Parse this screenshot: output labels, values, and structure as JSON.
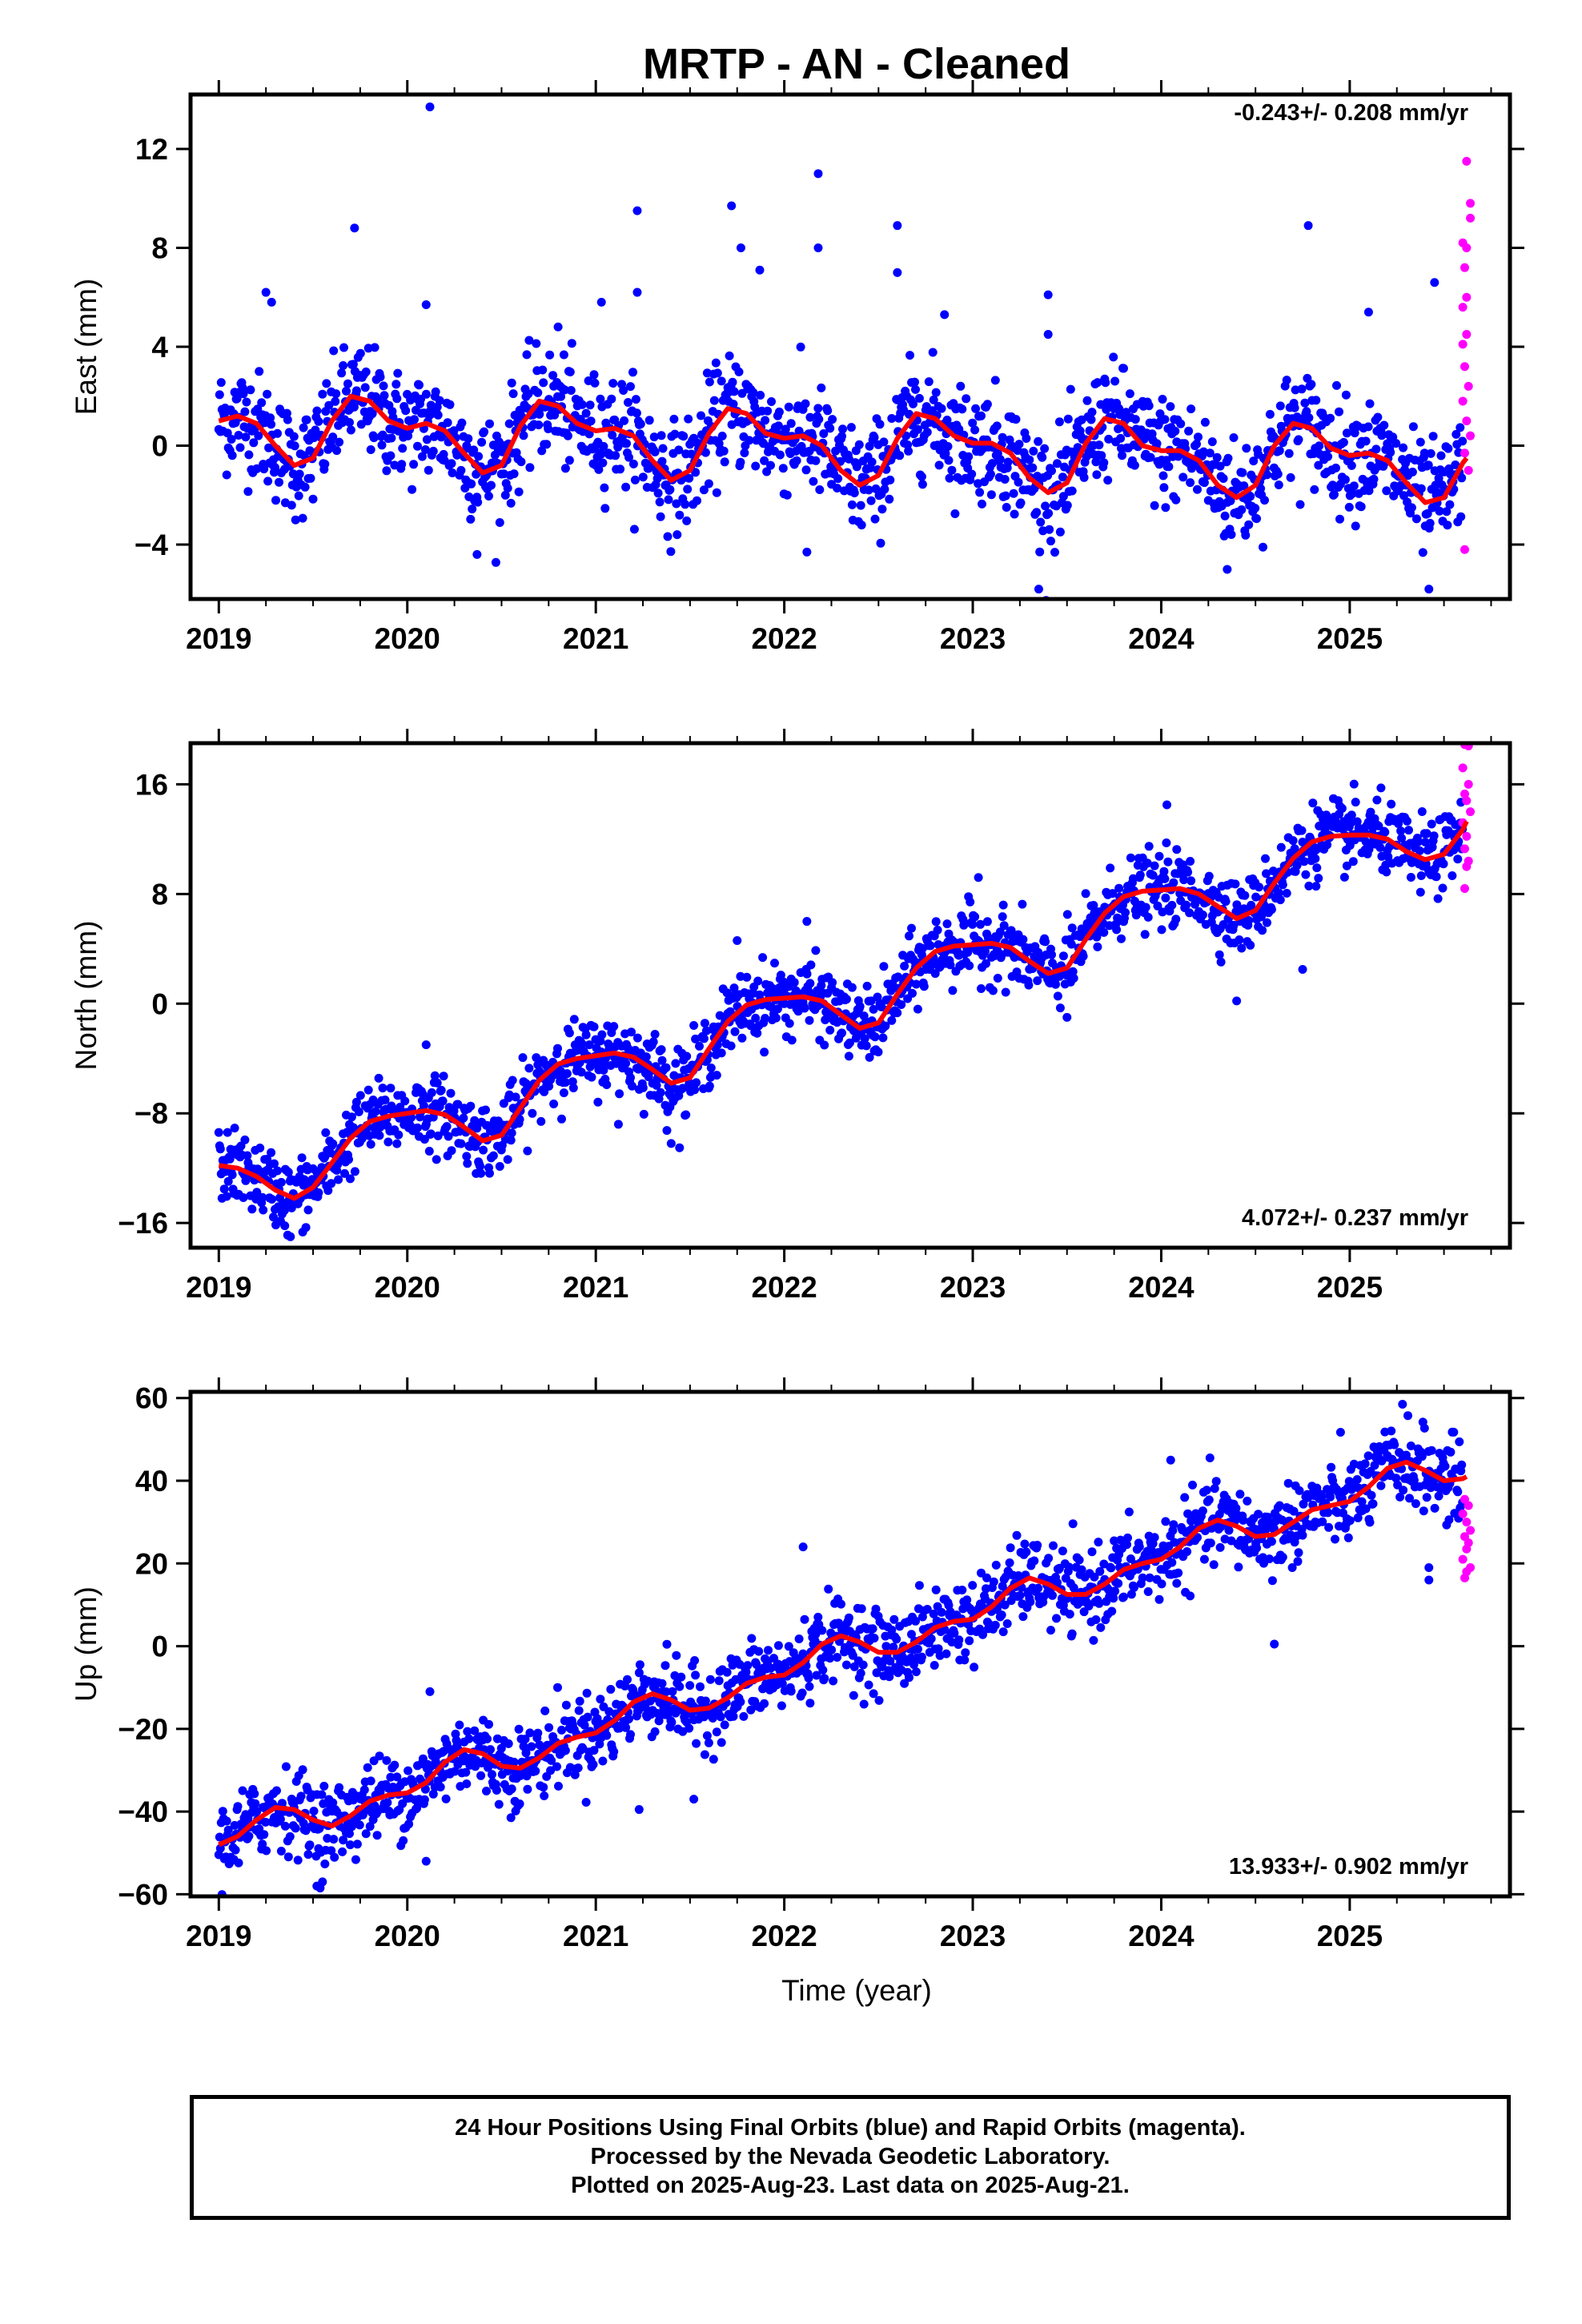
{
  "title": "MRTP  - AN - Cleaned",
  "xlabel": "Time (year)",
  "footer": {
    "line1": "24 Hour Positions Using Final Orbits (blue) and Rapid Orbits (magenta).",
    "line2": "Processed by the Nevada Geodetic Laboratory.",
    "line3": "Plotted on 2025-Aug-23. Last data on 2025-Aug-21."
  },
  "colors": {
    "final": "#0000ff",
    "rapid": "#ff00ff",
    "model": "#ff0000"
  },
  "chart_data": [
    {
      "type": "scatter",
      "ylabel": "East (mm)",
      "rate_text": "-0.243+/- 0.208 mm/yr",
      "xlim": [
        2018.85,
        2025.85
      ],
      "ylim": [
        -6.2,
        14.2
      ],
      "xticks": [
        2019,
        2020,
        2021,
        2022,
        2023,
        2024,
        2025
      ],
      "yticks": [
        -4,
        0,
        4,
        8,
        12
      ],
      "model_points": [
        [
          2019.0,
          1.0
        ],
        [
          2019.1,
          1.2
        ],
        [
          2019.2,
          0.9
        ],
        [
          2019.3,
          0.0
        ],
        [
          2019.4,
          -0.8
        ],
        [
          2019.5,
          -0.5
        ],
        [
          2019.6,
          1.0
        ],
        [
          2019.7,
          2.0
        ],
        [
          2019.8,
          1.8
        ],
        [
          2019.9,
          1.0
        ],
        [
          2020.0,
          0.7
        ],
        [
          2020.1,
          0.9
        ],
        [
          2020.2,
          0.6
        ],
        [
          2020.3,
          -0.3
        ],
        [
          2020.4,
          -1.1
        ],
        [
          2020.5,
          -0.8
        ],
        [
          2020.6,
          0.8
        ],
        [
          2020.7,
          1.8
        ],
        [
          2020.8,
          1.6
        ],
        [
          2020.9,
          0.9
        ],
        [
          2021.0,
          0.6
        ],
        [
          2021.1,
          0.7
        ],
        [
          2021.2,
          0.4
        ],
        [
          2021.3,
          -0.6
        ],
        [
          2021.4,
          -1.4
        ],
        [
          2021.5,
          -1.0
        ],
        [
          2021.6,
          0.5
        ],
        [
          2021.7,
          1.5
        ],
        [
          2021.8,
          1.3
        ],
        [
          2021.9,
          0.5
        ],
        [
          2022.0,
          0.3
        ],
        [
          2022.1,
          0.4
        ],
        [
          2022.2,
          0.0
        ],
        [
          2022.3,
          -1.0
        ],
        [
          2022.4,
          -1.6
        ],
        [
          2022.5,
          -1.2
        ],
        [
          2022.6,
          0.3
        ],
        [
          2022.7,
          1.3
        ],
        [
          2022.8,
          1.1
        ],
        [
          2022.9,
          0.4
        ],
        [
          2023.0,
          0.1
        ],
        [
          2023.1,
          0.1
        ],
        [
          2023.2,
          -0.3
        ],
        [
          2023.3,
          -1.3
        ],
        [
          2023.4,
          -1.9
        ],
        [
          2023.5,
          -1.5
        ],
        [
          2023.6,
          0.1
        ],
        [
          2023.7,
          1.1
        ],
        [
          2023.8,
          0.9
        ],
        [
          2023.9,
          0.0
        ],
        [
          2024.0,
          -0.2
        ],
        [
          2024.1,
          -0.2
        ],
        [
          2024.2,
          -0.6
        ],
        [
          2024.3,
          -1.6
        ],
        [
          2024.4,
          -2.1
        ],
        [
          2024.5,
          -1.6
        ],
        [
          2024.6,
          0.0
        ],
        [
          2024.7,
          0.9
        ],
        [
          2024.8,
          0.7
        ],
        [
          2024.9,
          -0.1
        ],
        [
          2025.0,
          -0.4
        ],
        [
          2025.1,
          -0.3
        ],
        [
          2025.2,
          -0.6
        ],
        [
          2025.3,
          -1.5
        ],
        [
          2025.4,
          -2.3
        ],
        [
          2025.5,
          -2.1
        ],
        [
          2025.6,
          -0.7
        ],
        [
          2025.62,
          -0.5
        ]
      ],
      "outliers": [
        [
          2019.25,
          6.2
        ],
        [
          2019.28,
          5.8
        ],
        [
          2019.72,
          8.8
        ],
        [
          2020.12,
          13.7
        ],
        [
          2020.1,
          5.7
        ],
        [
          2020.8,
          4.8
        ],
        [
          2021.03,
          5.8
        ],
        [
          2021.22,
          9.5
        ],
        [
          2021.22,
          6.2
        ],
        [
          2021.72,
          9.7
        ],
        [
          2021.77,
          8.0
        ],
        [
          2021.87,
          7.1
        ],
        [
          2022.18,
          11.0
        ],
        [
          2022.18,
          8.0
        ],
        [
          2022.6,
          8.9
        ],
        [
          2022.6,
          7.0
        ],
        [
          2022.85,
          5.3
        ],
        [
          2023.4,
          6.1
        ],
        [
          2023.4,
          4.5
        ],
        [
          2024.78,
          8.9
        ],
        [
          2025.1,
          5.4
        ],
        [
          2025.45,
          6.6
        ],
        [
          2022.12,
          -4.3
        ],
        [
          2023.35,
          -5.8
        ],
        [
          2024.35,
          -5.0
        ],
        [
          2025.42,
          -5.8
        ],
        [
          2020.37,
          -4.4
        ]
      ],
      "rapid": [
        [
          2025.62,
          11.5
        ],
        [
          2025.64,
          9.8
        ],
        [
          2025.64,
          9.2
        ],
        [
          2025.6,
          8.2
        ],
        [
          2025.62,
          8.0
        ],
        [
          2025.61,
          7.2
        ],
        [
          2025.62,
          6.0
        ],
        [
          2025.6,
          5.6
        ],
        [
          2025.62,
          4.5
        ],
        [
          2025.6,
          4.1
        ],
        [
          2025.61,
          3.2
        ],
        [
          2025.63,
          2.4
        ],
        [
          2025.6,
          1.8
        ],
        [
          2025.62,
          1.0
        ],
        [
          2025.64,
          0.4
        ],
        [
          2025.61,
          -0.3
        ],
        [
          2025.63,
          -1.0
        ],
        [
          2025.61,
          -4.2
        ]
      ]
    },
    {
      "type": "scatter",
      "ylabel": "North (mm)",
      "rate_text": "4.072+/- 0.237 mm/yr",
      "xlim": [
        2018.85,
        2025.85
      ],
      "ylim": [
        -17.8,
        19.0
      ],
      "xticks": [
        2019,
        2020,
        2021,
        2022,
        2023,
        2024,
        2025
      ],
      "yticks": [
        -16,
        -8,
        0,
        8,
        16
      ],
      "model_points": [
        [
          2019.0,
          -11.8
        ],
        [
          2019.1,
          -12.0
        ],
        [
          2019.2,
          -12.6
        ],
        [
          2019.3,
          -13.6
        ],
        [
          2019.4,
          -14.2
        ],
        [
          2019.5,
          -13.4
        ],
        [
          2019.6,
          -11.6
        ],
        [
          2019.7,
          -9.8
        ],
        [
          2019.8,
          -8.6
        ],
        [
          2019.9,
          -8.2
        ],
        [
          2020.0,
          -8.0
        ],
        [
          2020.1,
          -7.8
        ],
        [
          2020.2,
          -8.1
        ],
        [
          2020.3,
          -9.0
        ],
        [
          2020.4,
          -10.0
        ],
        [
          2020.5,
          -9.6
        ],
        [
          2020.6,
          -7.6
        ],
        [
          2020.7,
          -5.6
        ],
        [
          2020.8,
          -4.4
        ],
        [
          2020.9,
          -4.0
        ],
        [
          2021.0,
          -3.8
        ],
        [
          2021.1,
          -3.6
        ],
        [
          2021.2,
          -3.9
        ],
        [
          2021.3,
          -4.8
        ],
        [
          2021.4,
          -5.8
        ],
        [
          2021.5,
          -5.4
        ],
        [
          2021.6,
          -3.3
        ],
        [
          2021.7,
          -1.3
        ],
        [
          2021.8,
          -0.1
        ],
        [
          2021.9,
          0.3
        ],
        [
          2022.0,
          0.4
        ],
        [
          2022.1,
          0.5
        ],
        [
          2022.2,
          0.2
        ],
        [
          2022.3,
          -0.8
        ],
        [
          2022.4,
          -1.8
        ],
        [
          2022.5,
          -1.4
        ],
        [
          2022.6,
          0.7
        ],
        [
          2022.7,
          2.6
        ],
        [
          2022.8,
          3.8
        ],
        [
          2022.9,
          4.2
        ],
        [
          2023.0,
          4.3
        ],
        [
          2023.1,
          4.4
        ],
        [
          2023.2,
          4.1
        ],
        [
          2023.3,
          3.1
        ],
        [
          2023.4,
          2.2
        ],
        [
          2023.5,
          2.6
        ],
        [
          2023.6,
          4.7
        ],
        [
          2023.7,
          6.6
        ],
        [
          2023.8,
          7.8
        ],
        [
          2023.9,
          8.2
        ],
        [
          2024.0,
          8.3
        ],
        [
          2024.1,
          8.4
        ],
        [
          2024.2,
          8.0
        ],
        [
          2024.3,
          7.1
        ],
        [
          2024.4,
          6.2
        ],
        [
          2024.5,
          6.8
        ],
        [
          2024.6,
          8.8
        ],
        [
          2024.7,
          10.6
        ],
        [
          2024.8,
          11.8
        ],
        [
          2024.9,
          12.2
        ],
        [
          2025.0,
          12.3
        ],
        [
          2025.1,
          12.3
        ],
        [
          2025.2,
          12.0
        ],
        [
          2025.3,
          11.1
        ],
        [
          2025.4,
          10.5
        ],
        [
          2025.5,
          10.9
        ],
        [
          2025.6,
          12.7
        ],
        [
          2025.62,
          13.3
        ]
      ],
      "outliers": [
        [
          2019.38,
          -17.0
        ],
        [
          2019.35,
          -16.2
        ],
        [
          2020.1,
          -3.0
        ],
        [
          2021.4,
          -10.2
        ],
        [
          2021.12,
          -8.8
        ],
        [
          2021.75,
          4.6
        ],
        [
          2022.12,
          6.0
        ],
        [
          2023.03,
          9.2
        ],
        [
          2023.5,
          -1.0
        ],
        [
          2024.03,
          14.5
        ],
        [
          2024.4,
          0.2
        ],
        [
          2024.75,
          2.5
        ],
        [
          2024.82,
          11.2
        ]
      ],
      "rapid": [
        [
          2025.61,
          18.9
        ],
        [
          2025.63,
          18.8
        ],
        [
          2025.6,
          17.2
        ],
        [
          2025.63,
          16.0
        ],
        [
          2025.61,
          15.3
        ],
        [
          2025.62,
          14.8
        ],
        [
          2025.64,
          14.0
        ],
        [
          2025.6,
          13.2
        ],
        [
          2025.62,
          12.2
        ],
        [
          2025.61,
          11.3
        ],
        [
          2025.63,
          10.4
        ],
        [
          2025.62,
          10.0
        ],
        [
          2025.61,
          8.4
        ]
      ]
    },
    {
      "type": "scatter",
      "ylabel": "Up (mm)",
      "rate_text": "13.933+/- 0.902 mm/yr",
      "xlim": [
        2018.85,
        2025.85
      ],
      "ylim": [
        -60.5,
        61.5
      ],
      "xticks": [
        2019,
        2020,
        2021,
        2022,
        2023,
        2024,
        2025
      ],
      "yticks": [
        -60,
        -40,
        -20,
        0,
        20,
        40,
        60
      ],
      "model_points": [
        [
          2019.0,
          -48.0
        ],
        [
          2019.1,
          -46.0
        ],
        [
          2019.2,
          -42.0
        ],
        [
          2019.3,
          -39.0
        ],
        [
          2019.4,
          -39.5
        ],
        [
          2019.5,
          -42.0
        ],
        [
          2019.6,
          -43.5
        ],
        [
          2019.7,
          -41.0
        ],
        [
          2019.8,
          -37.5
        ],
        [
          2019.9,
          -36.0
        ],
        [
          2020.0,
          -35.5
        ],
        [
          2020.1,
          -33.0
        ],
        [
          2020.2,
          -28.0
        ],
        [
          2020.3,
          -25.0
        ],
        [
          2020.4,
          -26.0
        ],
        [
          2020.5,
          -29.0
        ],
        [
          2020.6,
          -29.5
        ],
        [
          2020.7,
          -27.0
        ],
        [
          2020.8,
          -23.5
        ],
        [
          2020.9,
          -22.0
        ],
        [
          2021.0,
          -21.0
        ],
        [
          2021.1,
          -18.0
        ],
        [
          2021.2,
          -13.5
        ],
        [
          2021.3,
          -11.5
        ],
        [
          2021.4,
          -13.0
        ],
        [
          2021.5,
          -15.5
        ],
        [
          2021.6,
          -15.0
        ],
        [
          2021.7,
          -12.5
        ],
        [
          2021.8,
          -9.0
        ],
        [
          2021.9,
          -7.5
        ],
        [
          2022.0,
          -7.0
        ],
        [
          2022.1,
          -4.0
        ],
        [
          2022.2,
          0.5
        ],
        [
          2022.3,
          2.5
        ],
        [
          2022.4,
          1.0
        ],
        [
          2022.5,
          -1.5
        ],
        [
          2022.6,
          -1.5
        ],
        [
          2022.7,
          1.0
        ],
        [
          2022.8,
          4.5
        ],
        [
          2022.9,
          6.0
        ],
        [
          2023.0,
          6.5
        ],
        [
          2023.1,
          9.5
        ],
        [
          2023.2,
          14.0
        ],
        [
          2023.3,
          16.5
        ],
        [
          2023.4,
          15.0
        ],
        [
          2023.5,
          12.5
        ],
        [
          2023.6,
          12.5
        ],
        [
          2023.7,
          15.0
        ],
        [
          2023.8,
          18.5
        ],
        [
          2023.9,
          20.0
        ],
        [
          2024.0,
          21.0
        ],
        [
          2024.1,
          24.0
        ],
        [
          2024.2,
          28.5
        ],
        [
          2024.3,
          30.5
        ],
        [
          2024.4,
          29.0
        ],
        [
          2024.5,
          26.5
        ],
        [
          2024.6,
          27.0
        ],
        [
          2024.7,
          30.0
        ],
        [
          2024.8,
          33.0
        ],
        [
          2024.9,
          34.0
        ],
        [
          2025.0,
          35.0
        ],
        [
          2025.1,
          38.5
        ],
        [
          2025.2,
          43.0
        ],
        [
          2025.3,
          44.5
        ],
        [
          2025.4,
          42.5
        ],
        [
          2025.5,
          40.0
        ],
        [
          2025.6,
          40.5
        ],
        [
          2025.62,
          41.0
        ]
      ],
      "outliers": [
        [
          2019.52,
          -58.0
        ],
        [
          2019.55,
          -57.0
        ],
        [
          2020.1,
          -52.0
        ],
        [
          2020.12,
          -11.0
        ],
        [
          2021.23,
          -39.5
        ],
        [
          2021.52,
          -37.0
        ],
        [
          2022.1,
          24.0
        ],
        [
          2024.6,
          0.5
        ],
        [
          2025.28,
          58.5
        ],
        [
          2025.42,
          16.0
        ],
        [
          2025.42,
          19.0
        ],
        [
          2024.05,
          45.0
        ]
      ],
      "rapid": [
        [
          2025.61,
          35.5
        ],
        [
          2025.63,
          34.0
        ],
        [
          2025.6,
          32.0
        ],
        [
          2025.62,
          30.0
        ],
        [
          2025.64,
          28.0
        ],
        [
          2025.61,
          26.5
        ],
        [
          2025.63,
          25.0
        ],
        [
          2025.62,
          23.5
        ],
        [
          2025.6,
          21.0
        ],
        [
          2025.64,
          19.0
        ],
        [
          2025.62,
          18.0
        ],
        [
          2025.61,
          16.5
        ]
      ]
    }
  ]
}
